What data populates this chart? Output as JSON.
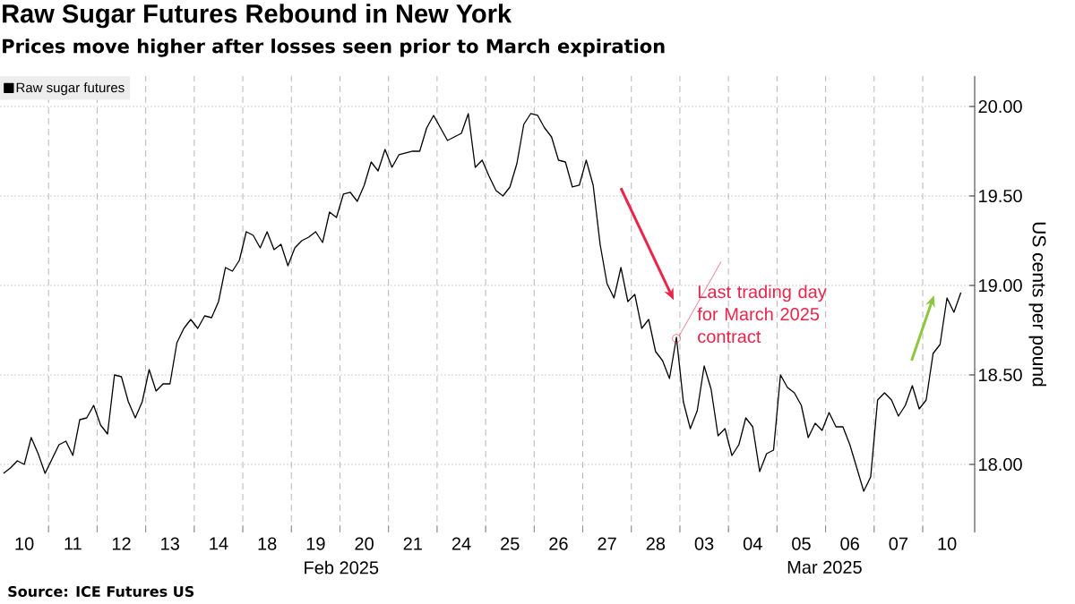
{
  "chart_data": {
    "type": "line",
    "title": "Raw Sugar Futures Rebound in New York",
    "subtitle": "Prices move higher after losses seen prior to March expiration",
    "ylabel": "US cents per pound",
    "categories": [
      null,
      null,
      null,
      "10",
      null,
      null,
      null,
      null,
      null,
      null,
      "11",
      null,
      null,
      null,
      null,
      null,
      null,
      "12",
      null,
      null,
      null,
      null,
      null,
      null,
      "13",
      null,
      null,
      null,
      null,
      null,
      null,
      "14",
      null,
      null,
      null,
      null,
      null,
      null,
      "18",
      null,
      null,
      null,
      null,
      null,
      null,
      "19",
      null,
      null,
      null,
      null,
      null,
      null,
      "20",
      null,
      null,
      null,
      null,
      null,
      null,
      "21",
      null,
      null,
      null,
      null,
      null,
      null,
      "24",
      null,
      null,
      null,
      null,
      null,
      null,
      "25",
      null,
      null,
      null,
      null,
      null,
      null,
      "26",
      null,
      null,
      null,
      null,
      null,
      null,
      "27",
      null,
      null,
      null,
      null,
      null,
      null,
      "28",
      null,
      null,
      null,
      null,
      null,
      null,
      "03",
      null,
      null,
      null,
      null,
      null,
      null,
      "04",
      null,
      null,
      null,
      null,
      null,
      null,
      "05",
      null,
      null,
      null,
      null,
      null,
      null,
      "06",
      null,
      null,
      null,
      null,
      null,
      null,
      "07",
      null,
      null,
      null,
      null,
      null,
      null,
      "10",
      null,
      null,
      null
    ],
    "series": [
      {
        "name": "Raw sugar futures",
        "color": "#000000",
        "values": [
          17.95,
          17.98,
          18.02,
          18.0,
          18.15,
          18.06,
          17.95,
          18.03,
          18.11,
          18.13,
          18.05,
          18.25,
          18.26,
          18.33,
          18.22,
          18.17,
          18.5,
          18.49,
          18.35,
          18.26,
          18.35,
          18.53,
          18.41,
          18.45,
          18.45,
          18.68,
          18.76,
          18.81,
          18.76,
          18.83,
          18.82,
          18.91,
          19.1,
          19.08,
          19.14,
          19.3,
          19.28,
          19.21,
          19.3,
          19.2,
          19.23,
          19.11,
          19.21,
          19.25,
          19.27,
          19.3,
          19.24,
          19.41,
          19.38,
          19.51,
          19.52,
          19.47,
          19.56,
          19.69,
          19.64,
          19.76,
          19.66,
          19.73,
          19.74,
          19.75,
          19.75,
          19.88,
          19.95,
          19.88,
          19.81,
          19.83,
          19.85,
          19.96,
          19.66,
          19.7,
          19.61,
          19.53,
          19.5,
          19.55,
          19.68,
          19.9,
          19.96,
          19.95,
          19.88,
          19.83,
          19.7,
          19.69,
          19.55,
          19.56,
          19.7,
          19.56,
          19.23,
          19.01,
          18.93,
          19.1,
          18.91,
          18.95,
          18.76,
          18.81,
          18.63,
          18.58,
          18.48,
          18.71,
          18.35,
          18.2,
          18.3,
          18.55,
          18.42,
          18.16,
          18.2,
          18.05,
          18.11,
          18.26,
          18.21,
          17.96,
          18.06,
          18.08,
          18.5,
          18.43,
          18.4,
          18.33,
          18.15,
          18.23,
          18.19,
          18.29,
          18.21,
          18.21,
          18.11,
          17.98,
          17.85,
          17.93,
          18.36,
          18.4,
          18.36,
          18.27,
          18.33,
          18.44,
          18.31,
          18.36,
          18.62,
          18.67,
          18.93,
          18.85,
          18.96,
          null
        ]
      }
    ],
    "ylim": [
      17.62,
      20.17
    ],
    "yticks": [
      {
        "value": 18,
        "label": "18.00"
      },
      {
        "value": 18.5,
        "label": "18.50"
      },
      {
        "value": 19,
        "label": "19.00"
      },
      {
        "value": 19.5,
        "label": "19.50"
      },
      {
        "value": 20,
        "label": "20.00"
      }
    ],
    "grid": true,
    "legend": "top left",
    "annotations": [
      "Last trading day for March 2025 contract",
      "Feb 2025",
      "Mar 2025",
      "Source: ICE Futures US"
    ]
  }
}
